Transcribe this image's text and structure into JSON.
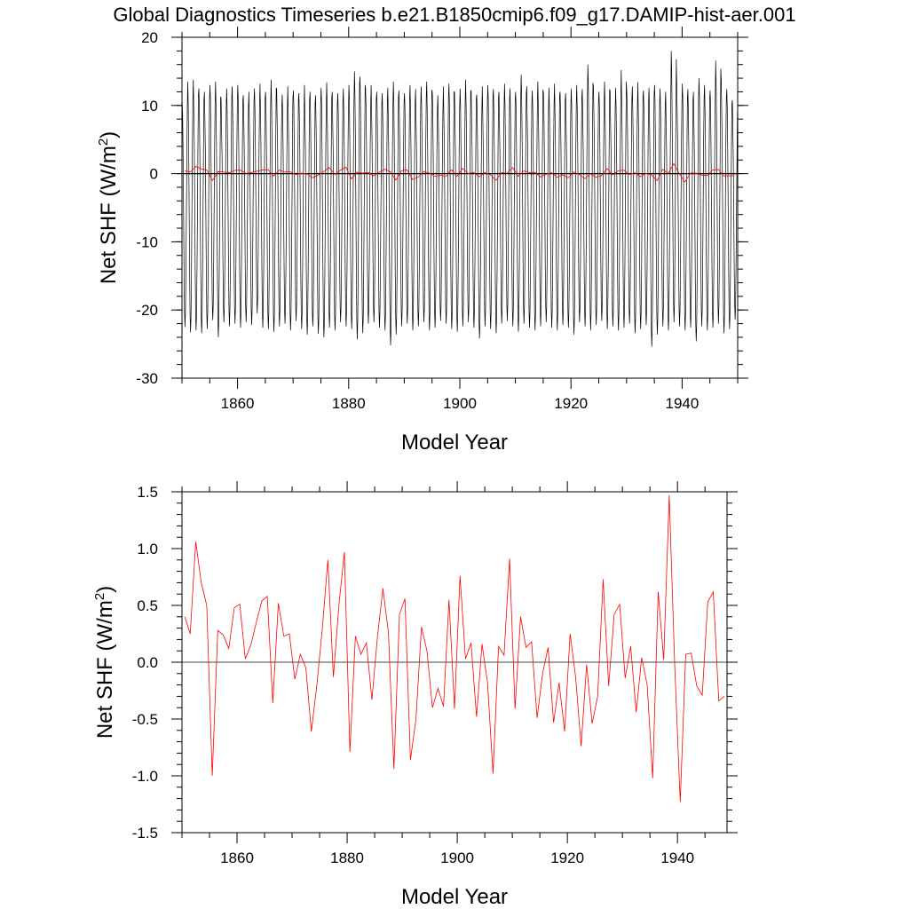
{
  "page": {
    "title": "Global Diagnostics Timeseries b.e21.B1850cmip6.f09_g17.DAMIP-hist-aer.001"
  },
  "chart_data": [
    {
      "type": "line",
      "xlabel": "Model Year",
      "ylabel": "Net SHF (W/m",
      "ylabel_sup": "2",
      "ylabel_end": ")",
      "xlim": [
        1850,
        1950
      ],
      "ylim": [
        -30,
        20
      ],
      "x_ticks": [
        1860,
        1880,
        1900,
        1920,
        1940
      ],
      "y_ticks": [
        20,
        10,
        0,
        -10,
        -20,
        -30
      ],
      "zero_line": true,
      "series": [
        {
          "kind": "monthly",
          "color": "#000000",
          "start_year": 1850,
          "annual_max": [
            10.5,
            13.5,
            13.8,
            12.5,
            12.0,
            13.0,
            13.5,
            11.0,
            12.5,
            12.8,
            13.0,
            11.5,
            12.0,
            12.5,
            13.2,
            12.0,
            13.8,
            12.4,
            11.6,
            12.8,
            12.2,
            11.8,
            13.0,
            12.0,
            11.5,
            12.6,
            13.4,
            12.0,
            11.8,
            12.5,
            13.0,
            15.0,
            14.2,
            12.5,
            13.0,
            12.0,
            11.8,
            12.6,
            13.5,
            12.2,
            11.8,
            13.0,
            12.4,
            12.8,
            13.5,
            12.0,
            11.5,
            12.8,
            13.2,
            12.0,
            12.5,
            13.8,
            12.2,
            11.6,
            12.8,
            13.0,
            12.4,
            12.0,
            13.2,
            12.5,
            12.0,
            14.5,
            12.8,
            12.2,
            13.5,
            12.0,
            12.6,
            13.2,
            12.0,
            11.8,
            12.5,
            13.0,
            12.4,
            16.0,
            12.8,
            12.0,
            13.5,
            12.2,
            12.6,
            15.2,
            12.0,
            12.8,
            13.4,
            12.2,
            12.6,
            13.0,
            12.5,
            12.0,
            18.0,
            12.8,
            13.2,
            12.4,
            12.0,
            14.0,
            13.0,
            12.2,
            16.6,
            13.8,
            12.4,
            10.8
          ],
          "annual_min": [
            -22.5,
            -23.3,
            -23.0,
            -23.4,
            -22.8,
            -21.5,
            -24.0,
            -21.8,
            -22.4,
            -22.0,
            -22.6,
            -21.8,
            -22.2,
            -20.5,
            -22.6,
            -22.8,
            -23.2,
            -22.4,
            -22.0,
            -23.0,
            -21.6,
            -22.8,
            -23.6,
            -22.4,
            -23.5,
            -24.0,
            -22.6,
            -23.0,
            -21.8,
            -22.4,
            -22.8,
            -24.3,
            -23.4,
            -22.0,
            -21.8,
            -22.6,
            -23.0,
            -25.2,
            -23.6,
            -22.4,
            -22.0,
            -23.0,
            -22.4,
            -21.8,
            -23.0,
            -22.6,
            -21.6,
            -22.0,
            -22.8,
            -23.2,
            -22.4,
            -21.8,
            -22.6,
            -24.2,
            -22.4,
            -22.8,
            -23.4,
            -22.0,
            -21.6,
            -22.4,
            -23.2,
            -22.0,
            -22.6,
            -23.0,
            -22.4,
            -21.8,
            -22.6,
            -23.0,
            -22.2,
            -22.6,
            -23.6,
            -21.8,
            -22.4,
            -23.0,
            -22.2,
            -21.6,
            -22.8,
            -22.4,
            -23.0,
            -22.6,
            -22.0,
            -23.4,
            -22.8,
            -22.2,
            -25.4,
            -23.6,
            -22.4,
            -23.0,
            -21.8,
            -22.4,
            -23.0,
            -22.6,
            -24.6,
            -22.4,
            -23.0,
            -22.6,
            -22.0,
            -23.4,
            -22.8,
            -21.4
          ]
        },
        {
          "kind": "annual",
          "color": "#ff0000",
          "x": [
            1850,
            1851,
            1852,
            1853,
            1854,
            1855,
            1856,
            1857,
            1858,
            1859,
            1860,
            1861,
            1862,
            1863,
            1864,
            1865,
            1866,
            1867,
            1868,
            1869,
            1870,
            1871,
            1872,
            1873,
            1874,
            1875,
            1876,
            1877,
            1878,
            1879,
            1880,
            1881,
            1882,
            1883,
            1884,
            1885,
            1886,
            1887,
            1888,
            1889,
            1890,
            1891,
            1892,
            1893,
            1894,
            1895,
            1896,
            1897,
            1898,
            1899,
            1900,
            1901,
            1902,
            1903,
            1904,
            1905,
            1906,
            1907,
            1908,
            1909,
            1910,
            1911,
            1912,
            1913,
            1914,
            1915,
            1916,
            1917,
            1918,
            1919,
            1920,
            1921,
            1922,
            1923,
            1924,
            1925,
            1926,
            1927,
            1928,
            1929,
            1930,
            1931,
            1932,
            1933,
            1934,
            1935,
            1936,
            1937,
            1938,
            1939,
            1940,
            1941,
            1942,
            1943,
            1944,
            1945,
            1946,
            1947,
            1948,
            1949
          ],
          "y": [
            0.4,
            0.25,
            1.06,
            0.7,
            0.5,
            -1.0,
            0.28,
            0.24,
            0.12,
            0.48,
            0.51,
            0.03,
            0.15,
            0.35,
            0.54,
            0.58,
            -0.36,
            0.52,
            0.23,
            0.25,
            -0.15,
            0.07,
            -0.05,
            -0.61,
            -0.2,
            0.3,
            0.9,
            -0.13,
            0.5,
            0.97,
            -0.79,
            0.23,
            0.07,
            0.17,
            -0.33,
            0.22,
            0.65,
            0.26,
            -0.94,
            0.42,
            0.56,
            -0.86,
            -0.5,
            0.31,
            0.1,
            -0.4,
            -0.23,
            -0.39,
            0.55,
            -0.41,
            0.76,
            0.03,
            0.17,
            -0.48,
            0.16,
            -0.18,
            -0.98,
            0.14,
            0.06,
            0.91,
            -0.41,
            0.4,
            0.13,
            0.18,
            -0.49,
            -0.1,
            0.13,
            -0.53,
            -0.18,
            -0.61,
            0.25,
            -0.13,
            -0.74,
            -0.02,
            -0.54,
            -0.3,
            0.73,
            -0.21,
            0.42,
            0.51,
            -0.14,
            0.14,
            -0.44,
            0.04,
            -0.2,
            -1.02,
            0.62,
            0.02,
            1.47,
            -0.03,
            -1.23,
            0.07,
            0.08,
            -0.21,
            -0.29,
            0.53,
            0.62,
            -0.34,
            -0.3,
            -0.31
          ]
        }
      ]
    },
    {
      "type": "line",
      "xlabel": "Model Year",
      "ylabel": "Net SHF (W/m",
      "ylabel_sup": "2",
      "ylabel_end": ")",
      "xlim": [
        1850,
        1949
      ],
      "ylim": [
        -1.5,
        1.5
      ],
      "x_ticks": [
        1860,
        1880,
        1900,
        1920,
        1940
      ],
      "y_ticks": [
        1.5,
        1.0,
        0.5,
        0.0,
        -0.5,
        -1.0,
        -1.5
      ],
      "y_tick_labels": [
        "1.5",
        "1.0",
        "0.5",
        "0.0",
        "-0.5",
        "-1.0",
        "-1.5"
      ],
      "zero_line": true,
      "series": [
        {
          "kind": "annual",
          "color": "#ff0000",
          "ref": "same as top annual series"
        }
      ]
    }
  ]
}
